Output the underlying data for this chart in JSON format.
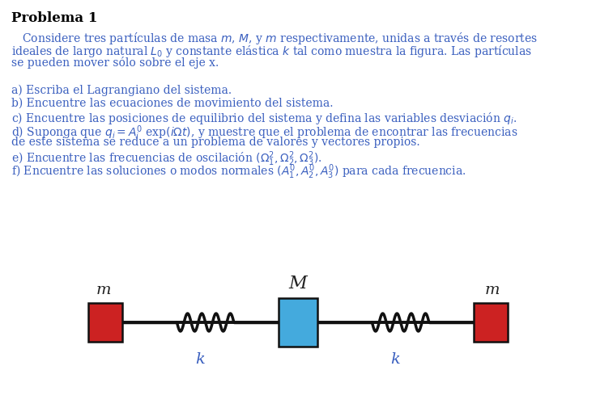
{
  "title": "Problema 1",
  "title_color": "#000000",
  "title_fontsize": 12,
  "text_color": "#3A5FBF",
  "text_fontsize": 10,
  "bg_color": "#ffffff",
  "mass_left_label": "m",
  "mass_right_label": "m",
  "mass_center_label": "M",
  "spring_label": "k",
  "mass_left_color": "#CC2222",
  "mass_right_color": "#CC2222",
  "mass_center_color": "#44AADD",
  "mass_edge_color": "#111111",
  "line_color": "#111111",
  "label_color": "#222222",
  "k_label_color": "#3A5FBF"
}
